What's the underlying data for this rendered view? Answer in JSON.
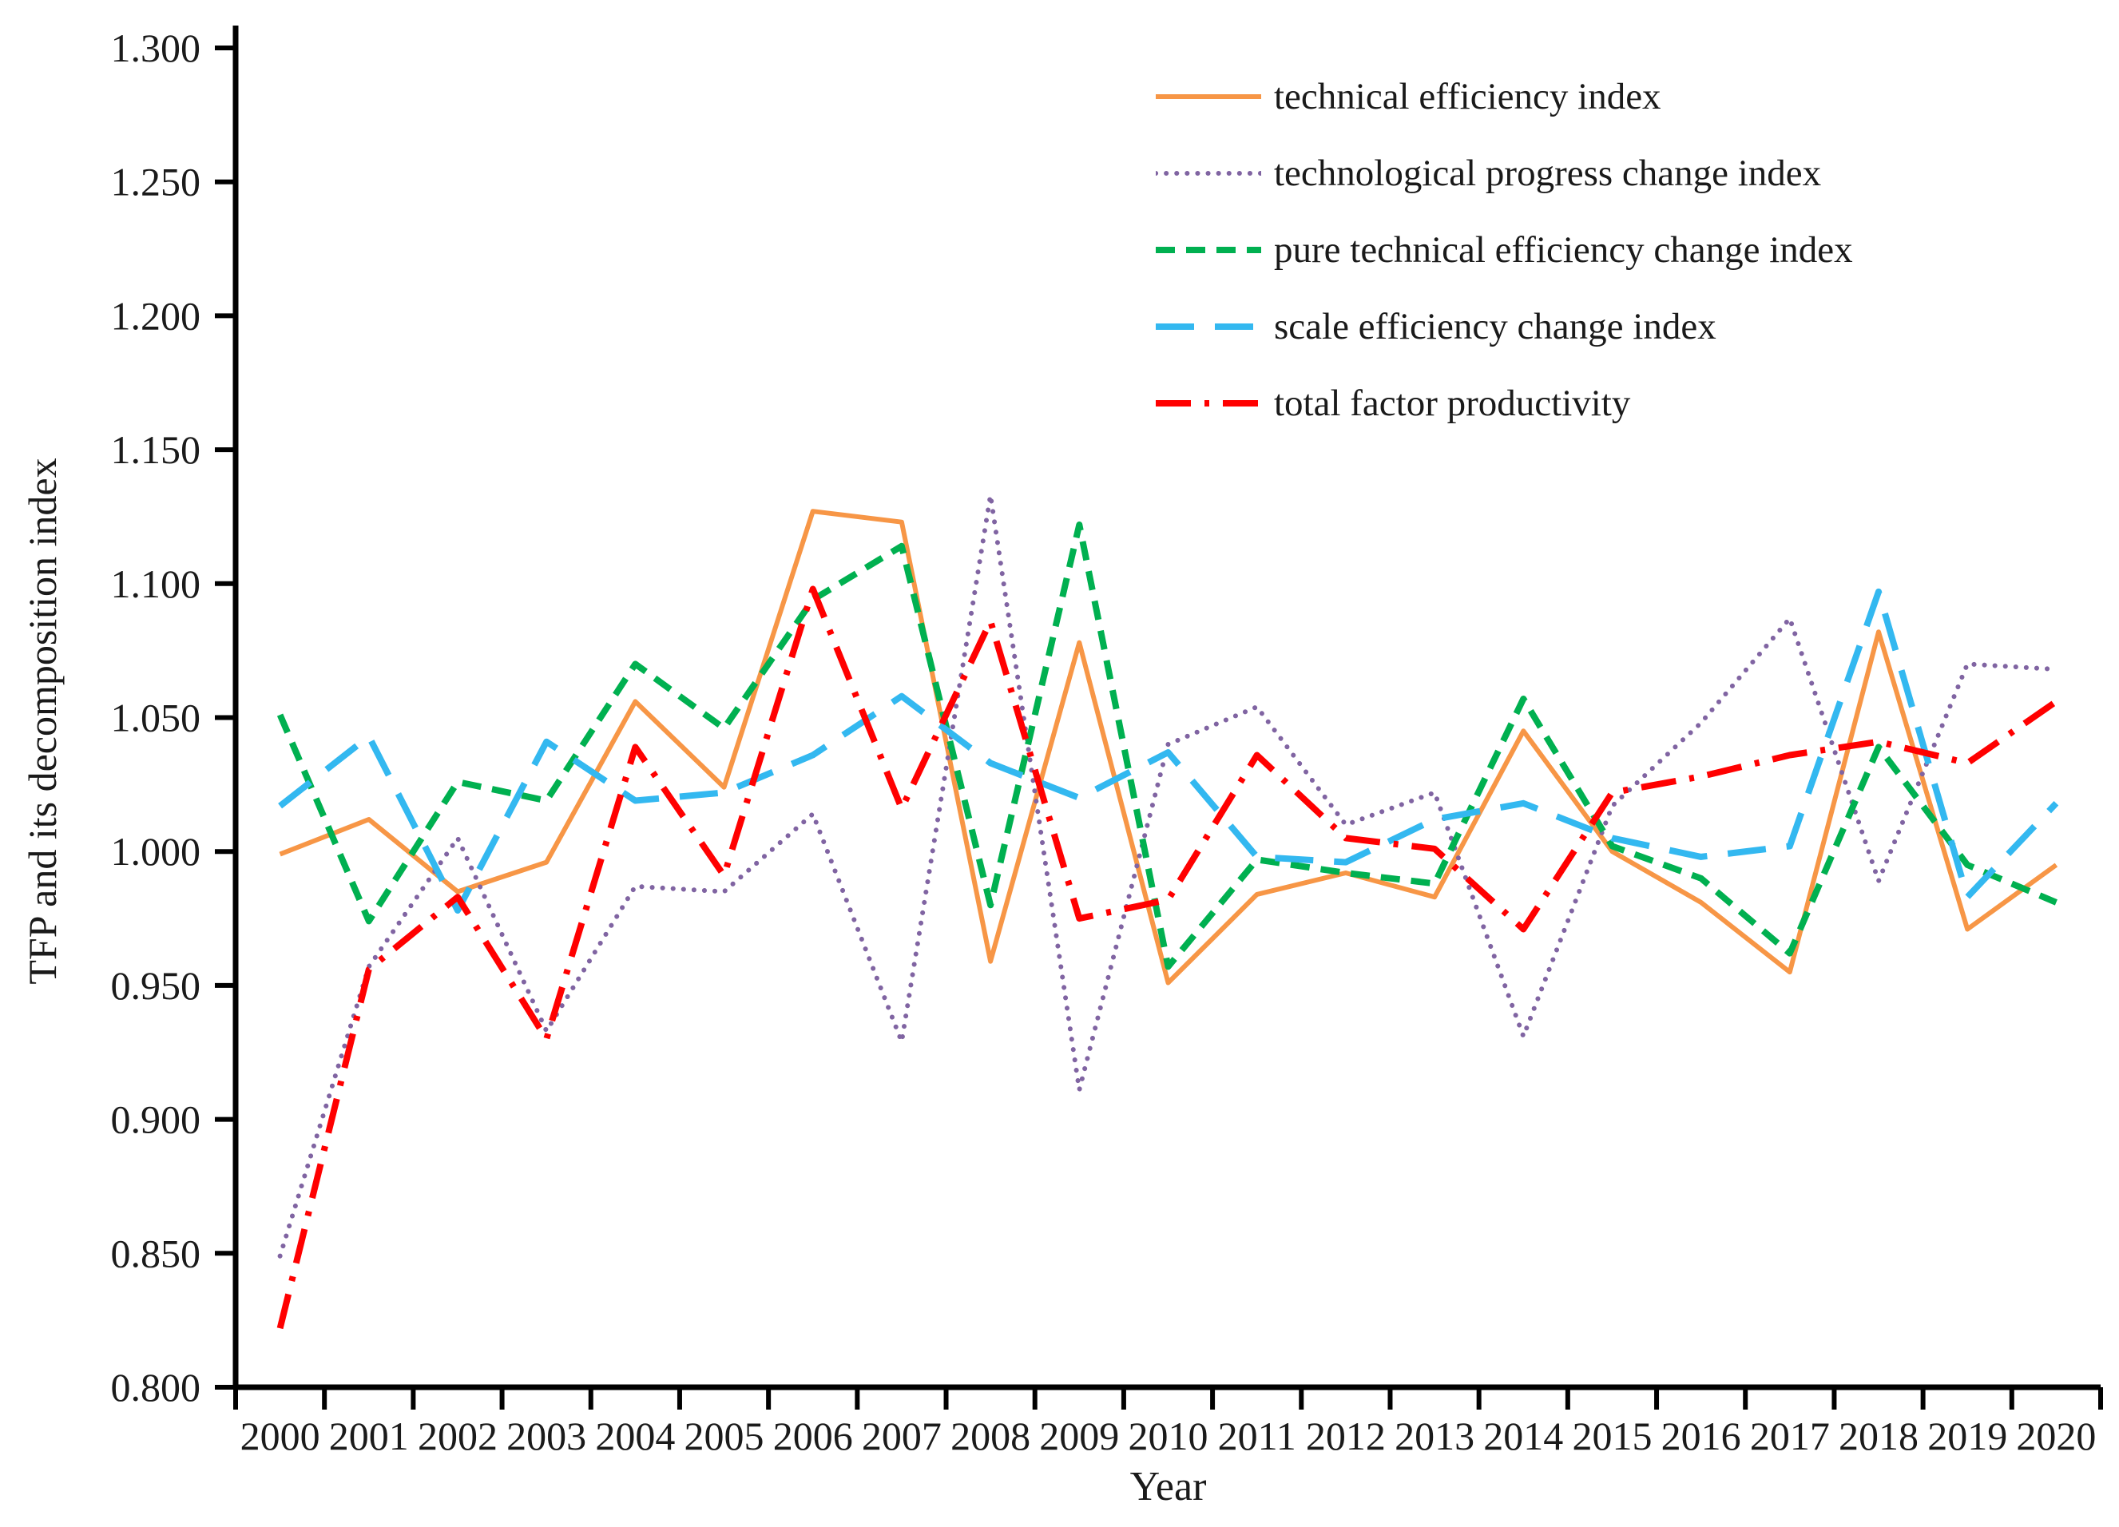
{
  "chart_data": {
    "type": "line",
    "title": "",
    "xlabel": "Year",
    "ylabel": "TFP and its decomposition index",
    "x_labels": [
      "2000",
      "2001",
      "2002",
      "2003",
      "2004",
      "2005",
      "2006",
      "2007",
      "2008",
      "2009",
      "2010",
      "2011",
      "2012",
      "2013",
      "2014",
      "2015",
      "2016",
      "2017",
      "2018",
      "2019",
      "2020"
    ],
    "ylim": [
      0.8,
      1.3
    ],
    "ytick_step": 0.05,
    "yticks": [
      "1.300",
      "1.250",
      "1.200",
      "1.150",
      "1.100",
      "1.050",
      "1.000",
      "0.950",
      "0.900",
      "0.850",
      "0.800"
    ],
    "grid": false,
    "legend_position": "top-right",
    "axis_color": "#000000",
    "tick_label_color": "#1a1a1a",
    "series": [
      {
        "name": "technical efficiency index",
        "color": "#F79646",
        "dash": "solid",
        "values": [
          0.999,
          1.012,
          0.985,
          0.996,
          1.056,
          1.024,
          1.127,
          1.123,
          0.959,
          1.078,
          0.951,
          0.984,
          0.992,
          0.983,
          1.045,
          1.0,
          0.981,
          0.955,
          1.082,
          0.971,
          0.995
        ]
      },
      {
        "name": "technological progress change index",
        "color": "#8064A2",
        "dash": "dotted",
        "values": [
          0.849,
          0.957,
          1.005,
          0.933,
          0.987,
          0.985,
          1.014,
          0.929,
          1.133,
          0.911,
          1.04,
          1.054,
          1.01,
          1.022,
          0.931,
          1.017,
          1.048,
          1.087,
          0.989,
          1.07,
          1.068
        ]
      },
      {
        "name": "pure technical efficiency change index",
        "color": "#00B050",
        "dash": "dashed",
        "values": [
          1.051,
          0.974,
          1.026,
          1.019,
          1.07,
          1.046,
          1.094,
          1.114,
          0.98,
          1.122,
          0.957,
          0.997,
          0.992,
          0.988,
          1.057,
          1.002,
          0.99,
          0.962,
          1.039,
          0.995,
          0.981
        ]
      },
      {
        "name": "scale efficiency change index",
        "color": "#33B8F0",
        "dash": "long-dash",
        "values": [
          1.017,
          1.043,
          0.978,
          1.041,
          1.019,
          1.022,
          1.036,
          1.058,
          1.033,
          1.02,
          1.037,
          0.998,
          0.996,
          1.012,
          1.018,
          1.005,
          0.998,
          1.002,
          1.097,
          0.983,
          1.018
        ]
      },
      {
        "name": "total factor productivity",
        "color": "#FF0000",
        "dash": "dash-dot",
        "values": [
          0.822,
          0.956,
          0.983,
          0.93,
          1.039,
          0.991,
          1.098,
          1.016,
          1.086,
          0.975,
          0.982,
          1.036,
          1.005,
          1.001,
          0.971,
          1.022,
          1.028,
          1.036,
          1.041,
          1.033,
          1.056
        ]
      }
    ]
  }
}
